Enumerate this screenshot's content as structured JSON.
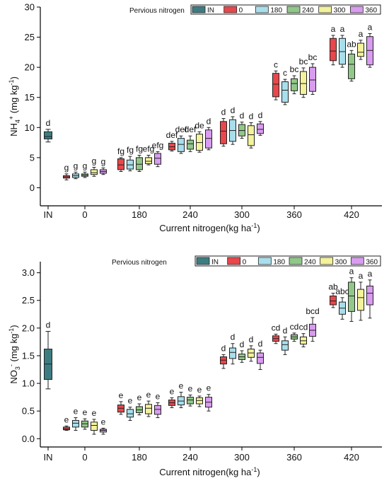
{
  "chart_data": [
    {
      "type": "box",
      "ylabel_text": "NH",
      "ylabel_sub": "4",
      "ylabel_sup": "+",
      "ylabel_unit": " (mg kg",
      "ylabel_unit_sup": "-1",
      "ylabel_close": ")",
      "xlabel_text": "Current nitrogen(kg ha",
      "xlabel_sup": "-1",
      "xlabel_close": ")",
      "ylim": [
        -3,
        30
      ],
      "yticks": [
        "0",
        "5",
        "10",
        "15",
        "20",
        "25",
        "30"
      ],
      "xticks": [
        "IN",
        "0",
        "180",
        "240",
        "300",
        "360",
        "420"
      ],
      "legend_title": "Pervious nitrogen",
      "legend": [
        "IN",
        "0",
        "180",
        "240",
        "300",
        "360"
      ],
      "colors": [
        "#3d7d82",
        "#e8474c",
        "#a9dfec",
        "#91c889",
        "#f4f29a",
        "#d99cef"
      ],
      "groups": [
        {
          "x": "IN",
          "boxes": [
            {
              "s": 0,
              "min": 7.6,
              "q1": 8.1,
              "med": 8.5,
              "q3": 9.3,
              "max": 9.7,
              "letter": "d"
            }
          ]
        },
        {
          "x": "0",
          "boxes": [
            {
              "s": 1,
              "min": 1.3,
              "q1": 1.6,
              "med": 1.8,
              "q3": 2.0,
              "max": 2.3,
              "letter": "g"
            },
            {
              "s": 2,
              "min": 1.5,
              "q1": 1.7,
              "med": 2.0,
              "q3": 2.3,
              "max": 2.6,
              "letter": "g"
            },
            {
              "s": 3,
              "min": 1.7,
              "q1": 1.9,
              "med": 2.1,
              "q3": 2.3,
              "max": 2.6,
              "letter": "g"
            },
            {
              "s": 4,
              "min": 1.9,
              "q1": 2.2,
              "med": 2.5,
              "q3": 3.0,
              "max": 3.4,
              "letter": "g"
            },
            {
              "s": 5,
              "min": 2.2,
              "q1": 2.4,
              "med": 2.7,
              "q3": 3.0,
              "max": 3.3,
              "letter": "g"
            }
          ]
        },
        {
          "x": "180",
          "boxes": [
            {
              "s": 1,
              "min": 2.7,
              "q1": 3.0,
              "med": 3.8,
              "q3": 4.8,
              "max": 5.0,
              "letter": "fg"
            },
            {
              "s": 2,
              "min": 2.8,
              "q1": 3.1,
              "med": 3.8,
              "q3": 4.6,
              "max": 5.2,
              "letter": "fg"
            },
            {
              "s": 3,
              "min": 2.7,
              "q1": 3.0,
              "med": 3.9,
              "q3": 5.0,
              "max": 5.4,
              "letter": "fg"
            },
            {
              "s": 4,
              "min": 3.8,
              "q1": 4.0,
              "med": 4.4,
              "q3": 5.0,
              "max": 5.4,
              "letter": "efg"
            },
            {
              "s": 5,
              "min": 3.5,
              "q1": 3.9,
              "med": 4.9,
              "q3": 5.7,
              "max": 6.0,
              "letter": "efg"
            }
          ]
        },
        {
          "x": "240",
          "boxes": [
            {
              "s": 1,
              "min": 6.1,
              "q1": 6.3,
              "med": 6.8,
              "q3": 7.4,
              "max": 7.7,
              "letter": "def"
            },
            {
              "s": 2,
              "min": 5.7,
              "q1": 6.0,
              "med": 7.2,
              "q3": 8.2,
              "max": 8.6,
              "letter": "def"
            },
            {
              "s": 3,
              "min": 6.0,
              "q1": 6.4,
              "med": 7.3,
              "q3": 7.9,
              "max": 8.6,
              "letter": "def"
            },
            {
              "s": 4,
              "min": 5.9,
              "q1": 6.2,
              "med": 7.5,
              "q3": 8.9,
              "max": 9.3,
              "letter": "de"
            },
            {
              "s": 5,
              "min": 6.3,
              "q1": 6.6,
              "med": 8.2,
              "q3": 9.6,
              "max": 10.0,
              "letter": "d"
            }
          ]
        },
        {
          "x": "300",
          "boxes": [
            {
              "s": 1,
              "min": 6.9,
              "q1": 7.3,
              "med": 9.4,
              "q3": 11.0,
              "max": 11.5,
              "letter": "d"
            },
            {
              "s": 2,
              "min": 7.2,
              "q1": 7.7,
              "med": 9.5,
              "q3": 11.3,
              "max": 11.8,
              "letter": "d"
            },
            {
              "s": 3,
              "min": 8.2,
              "q1": 8.6,
              "med": 9.5,
              "q3": 10.5,
              "max": 10.9,
              "letter": "d"
            },
            {
              "s": 4,
              "min": 6.6,
              "q1": 7.0,
              "med": 8.8,
              "q3": 10.3,
              "max": 10.8,
              "letter": "d"
            },
            {
              "s": 5,
              "min": 8.7,
              "q1": 9.0,
              "med": 9.7,
              "q3": 10.6,
              "max": 11.0,
              "letter": "d"
            }
          ]
        },
        {
          "x": "360",
          "boxes": [
            {
              "s": 1,
              "min": 14.6,
              "q1": 15.1,
              "med": 17.2,
              "q3": 19.0,
              "max": 19.4,
              "letter": "c"
            },
            {
              "s": 2,
              "min": 13.8,
              "q1": 14.2,
              "med": 16.2,
              "q3": 17.6,
              "max": 18.0,
              "letter": "c"
            },
            {
              "s": 3,
              "min": 15.6,
              "q1": 16.1,
              "med": 17.3,
              "q3": 18.1,
              "max": 18.6,
              "letter": "bc"
            },
            {
              "s": 4,
              "min": 15.0,
              "q1": 15.5,
              "med": 17.3,
              "q3": 19.3,
              "max": 19.9,
              "letter": "bc"
            },
            {
              "s": 5,
              "min": 15.5,
              "q1": 16.0,
              "med": 17.9,
              "q3": 20.0,
              "max": 20.6,
              "letter": "bc"
            }
          ]
        },
        {
          "x": "420",
          "boxes": [
            {
              "s": 1,
              "min": 20.4,
              "q1": 21.1,
              "med": 22.7,
              "q3": 24.8,
              "max": 25.3,
              "letter": "a"
            },
            {
              "s": 2,
              "min": 20.0,
              "q1": 20.5,
              "med": 22.6,
              "q3": 24.8,
              "max": 25.3,
              "letter": "a"
            },
            {
              "s": 3,
              "min": 17.7,
              "q1": 18.1,
              "med": 20.5,
              "q3": 22.2,
              "max": 22.8,
              "letter": "ab"
            },
            {
              "s": 4,
              "min": 21.3,
              "q1": 21.8,
              "med": 22.5,
              "q3": 24.0,
              "max": 24.5,
              "letter": "a"
            },
            {
              "s": 5,
              "min": 20.0,
              "q1": 20.4,
              "med": 22.8,
              "q3": 25.1,
              "max": 25.6,
              "letter": "a"
            }
          ]
        }
      ]
    },
    {
      "type": "box",
      "ylabel_text": "NO",
      "ylabel_sub": "3",
      "ylabel_sup": "-",
      "ylabel_unit": " (mg kg",
      "ylabel_unit_sup": "-1",
      "ylabel_close": ")",
      "xlabel_text": "Current nitrogen(kg ha",
      "xlabel_sup": "-1",
      "xlabel_close": ")",
      "ylim": [
        -0.15,
        3.2
      ],
      "yticks": [
        "0.0",
        "0.5",
        "1.0",
        "1.5",
        "2.0",
        "2.5",
        "3.0"
      ],
      "xticks": [
        "IN",
        "0",
        "180",
        "240",
        "300",
        "360",
        "420"
      ],
      "legend_title": "Pervious nitrogen",
      "legend": [
        "IN",
        "0",
        "180",
        "240",
        "300",
        "360"
      ],
      "colors": [
        "#3d7d82",
        "#e8474c",
        "#a9dfec",
        "#91c889",
        "#f4f29a",
        "#d99cef"
      ],
      "groups": [
        {
          "x": "IN",
          "boxes": [
            {
              "s": 0,
              "min": 0.9,
              "q1": 1.07,
              "med": 1.35,
              "q3": 1.62,
              "max": 1.94,
              "letter": "d"
            }
          ]
        },
        {
          "x": "0",
          "boxes": [
            {
              "s": 1,
              "min": 0.15,
              "q1": 0.16,
              "med": 0.18,
              "q3": 0.21,
              "max": 0.23,
              "letter": "e"
            },
            {
              "s": 2,
              "min": 0.15,
              "q1": 0.21,
              "med": 0.28,
              "q3": 0.33,
              "max": 0.38,
              "letter": "e"
            },
            {
              "s": 3,
              "min": 0.17,
              "q1": 0.21,
              "med": 0.27,
              "q3": 0.32,
              "max": 0.36,
              "letter": "e"
            },
            {
              "s": 4,
              "min": 0.08,
              "q1": 0.15,
              "med": 0.24,
              "q3": 0.3,
              "max": 0.35,
              "letter": "e"
            },
            {
              "s": 5,
              "min": 0.08,
              "q1": 0.12,
              "med": 0.15,
              "q3": 0.17,
              "max": 0.19,
              "letter": "e"
            }
          ]
        },
        {
          "x": "180",
          "boxes": [
            {
              "s": 1,
              "min": 0.44,
              "q1": 0.48,
              "med": 0.55,
              "q3": 0.61,
              "max": 0.67,
              "letter": "e"
            },
            {
              "s": 2,
              "min": 0.33,
              "q1": 0.39,
              "med": 0.45,
              "q3": 0.53,
              "max": 0.57,
              "letter": "e"
            },
            {
              "s": 3,
              "min": 0.43,
              "q1": 0.47,
              "med": 0.52,
              "q3": 0.58,
              "max": 0.63,
              "letter": "e"
            },
            {
              "s": 4,
              "min": 0.4,
              "q1": 0.45,
              "med": 0.55,
              "q3": 0.62,
              "max": 0.68,
              "letter": "e"
            },
            {
              "s": 5,
              "min": 0.38,
              "q1": 0.44,
              "med": 0.53,
              "q3": 0.6,
              "max": 0.65,
              "letter": "e"
            }
          ]
        },
        {
          "x": "240",
          "boxes": [
            {
              "s": 1,
              "min": 0.56,
              "q1": 0.6,
              "med": 0.65,
              "q3": 0.7,
              "max": 0.74,
              "letter": "e"
            },
            {
              "s": 2,
              "min": 0.56,
              "q1": 0.61,
              "med": 0.68,
              "q3": 0.76,
              "max": 0.84,
              "letter": "e"
            },
            {
              "s": 3,
              "min": 0.59,
              "q1": 0.63,
              "med": 0.7,
              "q3": 0.75,
              "max": 0.79,
              "letter": "e"
            },
            {
              "s": 4,
              "min": 0.58,
              "q1": 0.63,
              "med": 0.69,
              "q3": 0.74,
              "max": 0.77,
              "letter": "e"
            },
            {
              "s": 5,
              "min": 0.5,
              "q1": 0.57,
              "med": 0.66,
              "q3": 0.75,
              "max": 0.8,
              "letter": "e"
            }
          ]
        },
        {
          "x": "300",
          "boxes": [
            {
              "s": 1,
              "min": 1.27,
              "q1": 1.35,
              "med": 1.42,
              "q3": 1.48,
              "max": 1.52,
              "letter": "d"
            },
            {
              "s": 2,
              "min": 1.35,
              "q1": 1.45,
              "med": 1.56,
              "q3": 1.64,
              "max": 1.72,
              "letter": "d"
            },
            {
              "s": 3,
              "min": 1.38,
              "q1": 1.43,
              "med": 1.48,
              "q3": 1.53,
              "max": 1.59,
              "letter": "d"
            },
            {
              "s": 4,
              "min": 1.4,
              "q1": 1.47,
              "med": 1.55,
              "q3": 1.62,
              "max": 1.68,
              "letter": "d"
            },
            {
              "s": 5,
              "min": 1.25,
              "q1": 1.36,
              "med": 1.47,
              "q3": 1.55,
              "max": 1.6,
              "letter": "d"
            }
          ]
        },
        {
          "x": "360",
          "boxes": [
            {
              "s": 1,
              "min": 1.72,
              "q1": 1.76,
              "med": 1.81,
              "q3": 1.86,
              "max": 1.89,
              "letter": "cd"
            },
            {
              "s": 2,
              "min": 1.52,
              "q1": 1.6,
              "med": 1.7,
              "q3": 1.77,
              "max": 1.84,
              "letter": "d"
            },
            {
              "s": 3,
              "min": 1.76,
              "q1": 1.8,
              "med": 1.84,
              "q3": 1.88,
              "max": 1.91,
              "letter": "cd"
            },
            {
              "s": 4,
              "min": 1.66,
              "q1": 1.71,
              "med": 1.77,
              "q3": 1.84,
              "max": 1.9,
              "letter": "cd"
            },
            {
              "s": 5,
              "min": 1.76,
              "q1": 1.85,
              "med": 1.96,
              "q3": 2.07,
              "max": 2.19,
              "letter": "bcd"
            }
          ]
        },
        {
          "x": "420",
          "boxes": [
            {
              "s": 1,
              "min": 2.37,
              "q1": 2.42,
              "med": 2.49,
              "q3": 2.58,
              "max": 2.63,
              "letter": "ab"
            },
            {
              "s": 2,
              "min": 2.16,
              "q1": 2.25,
              "med": 2.36,
              "q3": 2.47,
              "max": 2.55,
              "letter": "abc"
            },
            {
              "s": 3,
              "min": 2.12,
              "q1": 2.3,
              "med": 2.58,
              "q3": 2.83,
              "max": 2.91,
              "letter": "a"
            },
            {
              "s": 4,
              "min": 2.14,
              "q1": 2.32,
              "med": 2.55,
              "q3": 2.7,
              "max": 2.83,
              "letter": "a"
            },
            {
              "s": 5,
              "min": 2.18,
              "q1": 2.42,
              "med": 2.63,
              "q3": 2.76,
              "max": 2.87,
              "letter": "a"
            }
          ]
        }
      ]
    }
  ]
}
